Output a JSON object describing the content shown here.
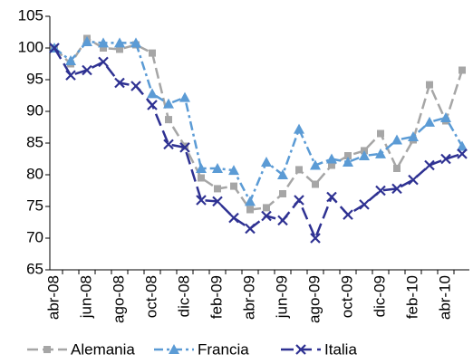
{
  "chart_data": {
    "type": "line",
    "categories": [
      "abr-08",
      null,
      "jun-08",
      null,
      "ago-08",
      null,
      "oct-08",
      null,
      "dic-08",
      null,
      "feb-09",
      null,
      "abr-09",
      null,
      "jun-09",
      null,
      "ago-09",
      null,
      "oct-09",
      null,
      "dic-09",
      null,
      "feb-10",
      null,
      "abr-10",
      null
    ],
    "series": [
      {
        "name": "Alemania",
        "color": "#a6a6a6",
        "marker": "square",
        "values": [
          100,
          97.5,
          101.5,
          100,
          99.8,
          100.5,
          99.2,
          88.7,
          84.5,
          79.5,
          77.8,
          78.2,
          74.5,
          74.8,
          77,
          80.8,
          78.5,
          81.5,
          83,
          83.8,
          86.5,
          81,
          85.5,
          94.2,
          88.5,
          96.5
        ]
      },
      {
        "name": "Francia",
        "color": "#5b9bd5",
        "marker": "triangle",
        "values": [
          100,
          98,
          101,
          100.8,
          100.8,
          100.8,
          92.8,
          91.2,
          92.2,
          81,
          81,
          80.7,
          75.8,
          82,
          80,
          87.2,
          81.5,
          82.5,
          82,
          83,
          83.3,
          85.5,
          86,
          88.3,
          89,
          84.5
        ]
      },
      {
        "name": "Italia",
        "color": "#2e3192",
        "marker": "x",
        "values": [
          100,
          95.7,
          96.5,
          97.8,
          94.5,
          94,
          91,
          84.8,
          84.3,
          76,
          75.8,
          73.2,
          71.5,
          73.5,
          72.8,
          76,
          70,
          76.5,
          73.7,
          75.3,
          77.5,
          77.8,
          79.2,
          81.5,
          82.5,
          83.3
        ]
      }
    ],
    "ylim": [
      65,
      105
    ],
    "yticks": [
      65,
      70,
      75,
      80,
      85,
      90,
      95,
      100,
      105
    ],
    "grid": false
  }
}
